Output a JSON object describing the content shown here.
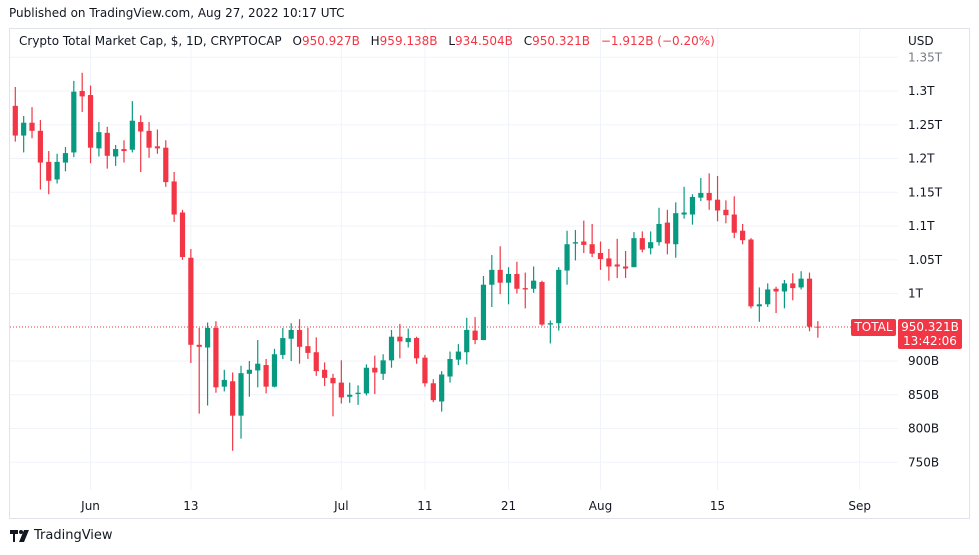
{
  "published": "Published on TradingView.com, Aug 27, 2022 10:17 UTC",
  "legend": {
    "symbol": "Crypto Total Market Cap, $, 1D, CRYPTOCAP",
    "o_label": "O",
    "o_value": "950.927B",
    "h_label": "H",
    "h_value": "959.138B",
    "l_label": "L",
    "l_value": "934.504B",
    "c_label": "C",
    "c_value": "950.321B",
    "change": "−1.912B (−0.20%)"
  },
  "currency": "USD",
  "last_price": {
    "ticker": "TOTAL",
    "price": "950.321B",
    "countdown": "13:42:06"
  },
  "footer": {
    "brand": "TradingView"
  },
  "colors": {
    "up": "#089981",
    "down": "#F23645",
    "grid": "#f0f3fa"
  },
  "chart_data": {
    "type": "candlestick",
    "title": "Crypto Total Market Cap, $, 1D, CRYPTOCAP",
    "unit": "B USD",
    "ylim": [
      710,
      1360
    ],
    "grid": true,
    "y_ticks": [
      {
        "value": 1350,
        "label": "1.35T"
      },
      {
        "value": 1300,
        "label": "1.3T"
      },
      {
        "value": 1250,
        "label": "1.25T"
      },
      {
        "value": 1200,
        "label": "1.2T"
      },
      {
        "value": 1150,
        "label": "1.15T"
      },
      {
        "value": 1100,
        "label": "1.1T"
      },
      {
        "value": 1050,
        "label": "1.05T"
      },
      {
        "value": 1000,
        "label": "1T"
      },
      {
        "value": 900,
        "label": "900B"
      },
      {
        "value": 850,
        "label": "850B"
      },
      {
        "value": 800,
        "label": "800B"
      },
      {
        "value": 750,
        "label": "750B"
      }
    ],
    "x_ticks": [
      {
        "date": "2022-06-01",
        "label": "Jun"
      },
      {
        "date": "2022-06-13",
        "label": "13"
      },
      {
        "date": "2022-07-01",
        "label": "Jul"
      },
      {
        "date": "2022-07-11",
        "label": "11"
      },
      {
        "date": "2022-07-21",
        "label": "21"
      },
      {
        "date": "2022-08-01",
        "label": "Aug"
      },
      {
        "date": "2022-08-15",
        "label": "15"
      },
      {
        "date": "2022-09-01",
        "label": "Sep"
      }
    ],
    "columns": [
      "date",
      "open",
      "high",
      "low",
      "close"
    ],
    "candles": [
      [
        "2022-05-23",
        1278,
        1306,
        1225,
        1234
      ],
      [
        "2022-05-24",
        1234,
        1263,
        1209,
        1253
      ],
      [
        "2022-05-25",
        1253,
        1276,
        1230,
        1241
      ],
      [
        "2022-05-26",
        1241,
        1257,
        1154,
        1194
      ],
      [
        "2022-05-27",
        1195,
        1211,
        1147,
        1167
      ],
      [
        "2022-05-28",
        1169,
        1207,
        1163,
        1195
      ],
      [
        "2022-05-29",
        1194,
        1217,
        1181,
        1208
      ],
      [
        "2022-05-30",
        1209,
        1315,
        1202,
        1299
      ],
      [
        "2022-05-31",
        1300,
        1327,
        1269,
        1292
      ],
      [
        "2022-06-01",
        1294,
        1308,
        1193,
        1216
      ],
      [
        "2022-06-02",
        1215,
        1254,
        1203,
        1239
      ],
      [
        "2022-06-03",
        1238,
        1247,
        1185,
        1204
      ],
      [
        "2022-06-04",
        1203,
        1220,
        1189,
        1214
      ],
      [
        "2022-06-05",
        1214,
        1227,
        1194,
        1211
      ],
      [
        "2022-06-06",
        1213,
        1285,
        1209,
        1256
      ],
      [
        "2022-06-07",
        1254,
        1264,
        1180,
        1240
      ],
      [
        "2022-06-08",
        1241,
        1254,
        1201,
        1216
      ],
      [
        "2022-06-09",
        1218,
        1243,
        1207,
        1215
      ],
      [
        "2022-06-10",
        1216,
        1227,
        1158,
        1165
      ],
      [
        "2022-06-11",
        1166,
        1180,
        1106,
        1117
      ],
      [
        "2022-06-12",
        1120,
        1124,
        1050,
        1054
      ],
      [
        "2022-06-13",
        1053,
        1066,
        897,
        924
      ],
      [
        "2022-06-14",
        924,
        949,
        822,
        921
      ],
      [
        "2022-06-15",
        920,
        957,
        834,
        949
      ],
      [
        "2022-06-16",
        949,
        959,
        853,
        861
      ],
      [
        "2022-06-17",
        862,
        887,
        855,
        872
      ],
      [
        "2022-06-18",
        870,
        883,
        767,
        819
      ],
      [
        "2022-06-19",
        819,
        893,
        785,
        882
      ],
      [
        "2022-06-20",
        881,
        900,
        847,
        887
      ],
      [
        "2022-06-21",
        886,
        931,
        861,
        896
      ],
      [
        "2022-06-22",
        894,
        903,
        852,
        862
      ],
      [
        "2022-06-23",
        862,
        918,
        861,
        910
      ],
      [
        "2022-06-24",
        909,
        949,
        903,
        934
      ],
      [
        "2022-06-25",
        933,
        956,
        900,
        946
      ],
      [
        "2022-06-26",
        946,
        962,
        896,
        921
      ],
      [
        "2022-06-27",
        922,
        949,
        903,
        912
      ],
      [
        "2022-06-28",
        913,
        935,
        878,
        885
      ],
      [
        "2022-06-29",
        887,
        898,
        863,
        875
      ],
      [
        "2022-06-30",
        875,
        881,
        818,
        867
      ],
      [
        "2022-07-01",
        868,
        901,
        837,
        846
      ],
      [
        "2022-07-02",
        847,
        868,
        838,
        850
      ],
      [
        "2022-07-03",
        851,
        864,
        835,
        853
      ],
      [
        "2022-07-04",
        852,
        895,
        849,
        890
      ],
      [
        "2022-07-05",
        890,
        908,
        851,
        883
      ],
      [
        "2022-07-06",
        881,
        910,
        872,
        901
      ],
      [
        "2022-07-07",
        901,
        946,
        890,
        936
      ],
      [
        "2022-07-08",
        936,
        955,
        904,
        929
      ],
      [
        "2022-07-09",
        928,
        948,
        920,
        934
      ],
      [
        "2022-07-10",
        934,
        936,
        896,
        904
      ],
      [
        "2022-07-11",
        905,
        909,
        862,
        867
      ],
      [
        "2022-07-12",
        867,
        873,
        839,
        842
      ],
      [
        "2022-07-13",
        840,
        885,
        825,
        880
      ],
      [
        "2022-07-14",
        877,
        914,
        868,
        903
      ],
      [
        "2022-07-15",
        902,
        925,
        894,
        914
      ],
      [
        "2022-07-16",
        913,
        964,
        895,
        946
      ],
      [
        "2022-07-17",
        945,
        965,
        925,
        931
      ],
      [
        "2022-07-18",
        931,
        1026,
        931,
        1013
      ],
      [
        "2022-07-19",
        1013,
        1057,
        980,
        1035
      ],
      [
        "2022-07-20",
        1035,
        1070,
        999,
        1016
      ],
      [
        "2022-07-21",
        1016,
        1039,
        984,
        1029
      ],
      [
        "2022-07-22",
        1029,
        1047,
        1000,
        1007
      ],
      [
        "2022-07-23",
        1008,
        1031,
        978,
        1006
      ],
      [
        "2022-07-24",
        1007,
        1040,
        1001,
        1019
      ],
      [
        "2022-07-25",
        1017,
        1019,
        952,
        954
      ],
      [
        "2022-07-26",
        954,
        960,
        926,
        956
      ],
      [
        "2022-07-27",
        956,
        1039,
        945,
        1035
      ],
      [
        "2022-07-28",
        1034,
        1093,
        1013,
        1073
      ],
      [
        "2022-07-29",
        1074,
        1094,
        1049,
        1076
      ],
      [
        "2022-07-30",
        1077,
        1108,
        1060,
        1072
      ],
      [
        "2022-07-31",
        1073,
        1103,
        1054,
        1059
      ],
      [
        "2022-08-01",
        1060,
        1077,
        1035,
        1051
      ],
      [
        "2022-08-02",
        1052,
        1066,
        1019,
        1040
      ],
      [
        "2022-08-03",
        1043,
        1081,
        1023,
        1040
      ],
      [
        "2022-08-04",
        1040,
        1063,
        1023,
        1037
      ],
      [
        "2022-08-05",
        1039,
        1091,
        1039,
        1082
      ],
      [
        "2022-08-06",
        1082,
        1092,
        1061,
        1065
      ],
      [
        "2022-08-07",
        1067,
        1092,
        1058,
        1076
      ],
      [
        "2022-08-08",
        1076,
        1127,
        1071,
        1103
      ],
      [
        "2022-08-09",
        1105,
        1124,
        1058,
        1074
      ],
      [
        "2022-08-10",
        1073,
        1135,
        1053,
        1119
      ],
      [
        "2022-08-11",
        1117,
        1158,
        1111,
        1120
      ],
      [
        "2022-08-12",
        1117,
        1147,
        1102,
        1143
      ],
      [
        "2022-08-13",
        1142,
        1171,
        1137,
        1149
      ],
      [
        "2022-08-14",
        1149,
        1178,
        1124,
        1138
      ],
      [
        "2022-08-15",
        1139,
        1174,
        1107,
        1123
      ],
      [
        "2022-08-16",
        1124,
        1138,
        1104,
        1116
      ],
      [
        "2022-08-17",
        1117,
        1144,
        1082,
        1090
      ],
      [
        "2022-08-18",
        1093,
        1103,
        1073,
        1079
      ],
      [
        "2022-08-19",
        1080,
        1082,
        978,
        981
      ],
      [
        "2022-08-20",
        981,
        1009,
        958,
        984
      ],
      [
        "2022-08-21",
        984,
        1015,
        980,
        1006
      ],
      [
        "2022-08-22",
        1007,
        1010,
        971,
        1003
      ],
      [
        "2022-08-23",
        1003,
        1020,
        978,
        1015
      ],
      [
        "2022-08-24",
        1015,
        1030,
        990,
        1008
      ],
      [
        "2022-08-25",
        1009,
        1033,
        1006,
        1022
      ],
      [
        "2022-08-26",
        1022,
        1031,
        944,
        951
      ],
      [
        "2022-08-27",
        950.927,
        959.138,
        934.504,
        950.321
      ]
    ],
    "last_close": 950.321
  }
}
